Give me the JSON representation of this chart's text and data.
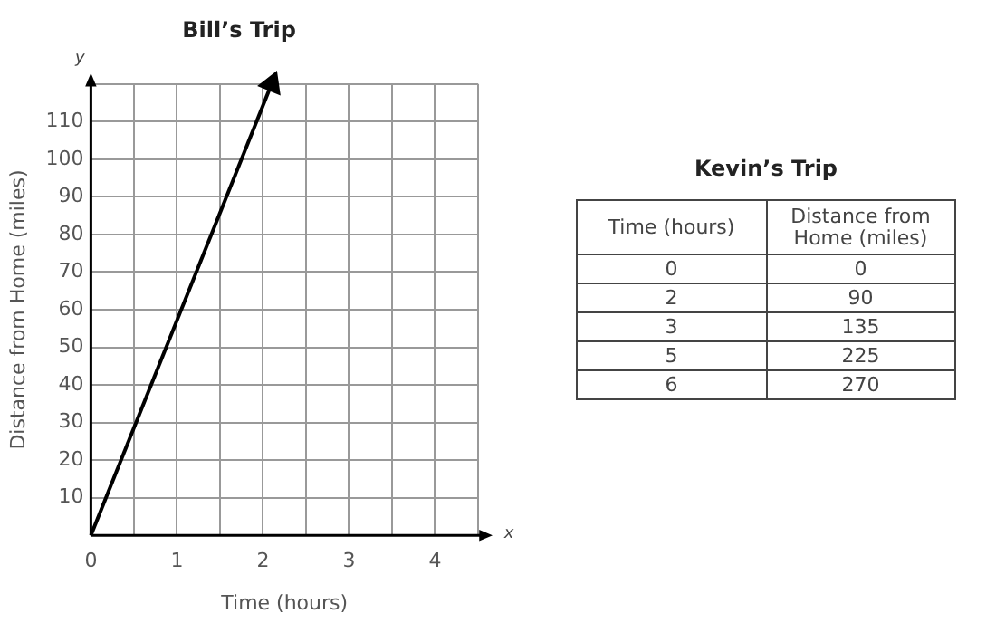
{
  "chart_data": [
    {
      "type": "line",
      "title": "Bill’s Trip",
      "xlabel": "Time (hours)",
      "ylabel": "Distance from Home (miles)",
      "color": "#000000",
      "line_style": "solid",
      "grid": true,
      "legend": false,
      "x": [
        0,
        2.1
      ],
      "values": [
        0,
        120
      ],
      "xlim": [
        0,
        4.5
      ],
      "xticks": [
        0,
        {
          "value": 0.5,
          "label": null
        },
        1,
        {
          "value": 1.5,
          "label": null
        },
        2,
        {
          "value": 2.5,
          "label": null
        },
        3,
        {
          "value": 3.5,
          "label": null
        },
        4,
        {
          "value": 4.5,
          "label": null
        }
      ],
      "ylim": [
        0,
        120
      ],
      "yticks": [
        {
          "value": 0,
          "label": null
        },
        10,
        20,
        30,
        40,
        50,
        60,
        70,
        80,
        90,
        100,
        110,
        {
          "value": 120,
          "label": null
        }
      ],
      "annotations": [
        "x",
        "y"
      ]
    },
    {
      "type": "other",
      "title": "Kevin’s Trip",
      "xlabel": "Time (hours)",
      "ylabel": "Distance from Home (miles)",
      "categories": [
        "0",
        "2",
        "3",
        "5",
        "6"
      ],
      "values": [
        0,
        90,
        135,
        225,
        270
      ],
      "data_labels": true
    }
  ]
}
